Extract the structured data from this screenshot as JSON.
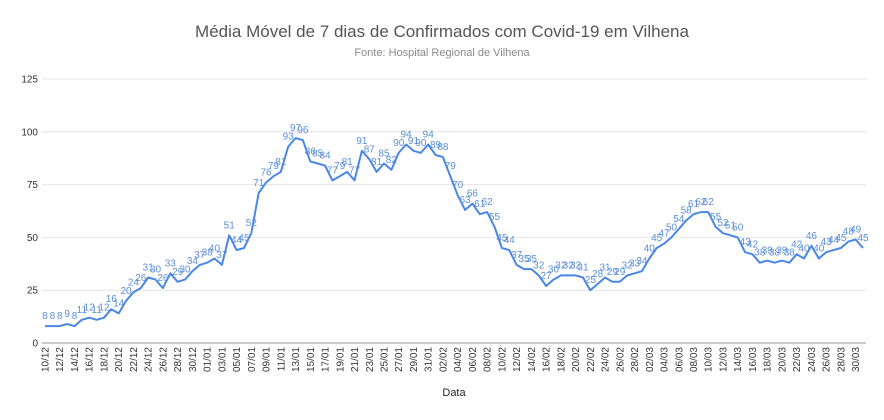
{
  "chart_data": {
    "type": "line",
    "title": "Média Móvel de 7 dias de Confirmados com Covid-19 em Vilhena",
    "subtitle": "Fonte: Hospital Regional de Vilhena",
    "xlabel": "Data",
    "ylabel": "",
    "ylim": [
      0,
      125
    ],
    "yticks": [
      "0",
      "25",
      "50",
      "75",
      "100",
      "125"
    ],
    "grid": true,
    "line_color": "#4a86e8",
    "label_color": "#5b8fd9",
    "x_tick_labels": [
      "10/12",
      "12/12",
      "14/12",
      "16/12",
      "18/12",
      "20/12",
      "22/12",
      "24/12",
      "26/12",
      "28/12",
      "30/12",
      "01/01",
      "03/01",
      "05/01",
      "07/01",
      "09/01",
      "11/01",
      "13/01",
      "15/01",
      "17/01",
      "19/01",
      "21/01",
      "23/01",
      "25/01",
      "27/01",
      "29/01",
      "31/01",
      "02/02",
      "04/02",
      "06/02",
      "08/02",
      "10/02",
      "12/02",
      "14/02",
      "16/02",
      "18/02",
      "20/02",
      "22/02",
      "24/02",
      "26/02",
      "28/02",
      "02/03",
      "04/03",
      "06/03",
      "08/03",
      "10/03",
      "12/03",
      "14/03",
      "16/03",
      "18/03",
      "20/03",
      "22/03",
      "24/03",
      "26/03",
      "28/03",
      "30/03"
    ],
    "series": [
      {
        "values": [
          8,
          8,
          8,
          9,
          8,
          11,
          12,
          11,
          12,
          16,
          14,
          20,
          24,
          26,
          31,
          30,
          26,
          33,
          29,
          30,
          34,
          37,
          38,
          40,
          37,
          51,
          44,
          45,
          52,
          71,
          76,
          79,
          81,
          93,
          97,
          96,
          86,
          85,
          84,
          77,
          79,
          81,
          77,
          91,
          87,
          81,
          85,
          82,
          90,
          94,
          91,
          90,
          94,
          89,
          88,
          79,
          70,
          63,
          66,
          61,
          62,
          55,
          45,
          44,
          37,
          35,
          35,
          32,
          27,
          30,
          32,
          32,
          32,
          31,
          25,
          28,
          31,
          29,
          29,
          32,
          33,
          34,
          40,
          45,
          47,
          50,
          54,
          58,
          61,
          62,
          62,
          55,
          52,
          51,
          50,
          43,
          42,
          38,
          39,
          38,
          39,
          38,
          42,
          40,
          46,
          40,
          43,
          44,
          45,
          48,
          49,
          45
        ]
      }
    ],
    "data_labels": [
      "8",
      "8",
      "8",
      "9",
      "8",
      "11",
      "12",
      "11",
      "12",
      "16",
      "14",
      "20",
      "24",
      "26",
      "31",
      "30",
      "26",
      "33",
      "29",
      "30",
      "34",
      "37",
      "38",
      "40",
      "37",
      "51",
      "44",
      "45",
      "52",
      "71",
      "76",
      "79",
      "81",
      "93",
      "97",
      "96",
      "86",
      "85",
      "84",
      "77",
      "79",
      "81",
      "77",
      "91",
      "87",
      "81",
      "85",
      "82",
      "90",
      "94",
      "91",
      "90",
      "94",
      "89",
      "88",
      "79",
      "70",
      "63",
      "66",
      "61",
      "62",
      "55",
      "45",
      "44",
      "37",
      "35",
      "35",
      "32",
      "27",
      "30",
      "32",
      "32",
      "32",
      "31",
      "25",
      "28",
      "31",
      "29",
      "29",
      "32",
      "33",
      "34",
      "40",
      "45",
      "47",
      "50",
      "54",
      "58",
      "61",
      "62",
      "62",
      "55",
      "52",
      "51",
      "50",
      "43",
      "42",
      "38",
      "39",
      "38",
      "39",
      "38",
      "42",
      "40",
      "46",
      "40",
      "43",
      "44",
      "45",
      "48",
      "49",
      "45"
    ]
  }
}
